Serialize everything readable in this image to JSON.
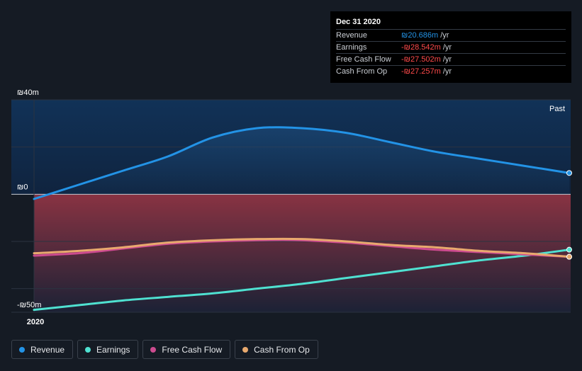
{
  "chart_data": {
    "type": "line",
    "x_tick_labels": [
      "2020"
    ],
    "y_tick_labels": [
      "₪40m",
      "₪0",
      "-₪50m"
    ],
    "ylim": [
      -50,
      40
    ],
    "past_label": "Past",
    "grid": true,
    "legend_position": "bottom-left",
    "x": [
      0,
      1,
      2,
      3,
      4,
      5,
      6,
      7,
      8,
      9,
      10,
      11,
      12
    ],
    "series": [
      {
        "name": "Revenue",
        "color": "#2393e6",
        "values": [
          -2,
          4,
          10,
          16,
          24,
          28,
          28,
          26,
          22,
          18,
          15,
          12,
          9
        ]
      },
      {
        "name": "Earnings",
        "color": "#4fe1d1",
        "values": [
          -49,
          -47,
          -45,
          -43.5,
          -42,
          -40,
          -38,
          -35.5,
          -33,
          -30.5,
          -28,
          -26,
          -23.5
        ]
      },
      {
        "name": "Free Cash Flow",
        "color": "#cc4b8f",
        "values": [
          -26,
          -25,
          -23,
          -21,
          -20,
          -19.5,
          -19.5,
          -20.5,
          -22,
          -23.5,
          -24.5,
          -25.5,
          -26.5
        ]
      },
      {
        "name": "Cash From Op",
        "color": "#e8a96e",
        "values": [
          -25,
          -24,
          -22.5,
          -20.5,
          -19.5,
          -19,
          -19,
          -20,
          -21.5,
          -22.5,
          -24,
          -25,
          -26.5
        ]
      }
    ]
  },
  "tooltip": {
    "title": "Dec 31 2020",
    "rows": [
      {
        "label": "Revenue",
        "value": "₪20.686m",
        "unit": "/yr",
        "color": "#2393e6"
      },
      {
        "label": "Earnings",
        "value": "-₪28.542m",
        "unit": "/yr",
        "color": "#ff4a4a"
      },
      {
        "label": "Free Cash Flow",
        "value": "-₪27.502m",
        "unit": "/yr",
        "color": "#ff4a4a"
      },
      {
        "label": "Cash From Op",
        "value": "-₪27.257m",
        "unit": "/yr",
        "color": "#ff4a4a"
      }
    ]
  },
  "legend": [
    {
      "label": "Revenue",
      "color": "#2393e6"
    },
    {
      "label": "Earnings",
      "color": "#4fe1d1"
    },
    {
      "label": "Free Cash Flow",
      "color": "#cc4b8f"
    },
    {
      "label": "Cash From Op",
      "color": "#e8a96e"
    }
  ]
}
